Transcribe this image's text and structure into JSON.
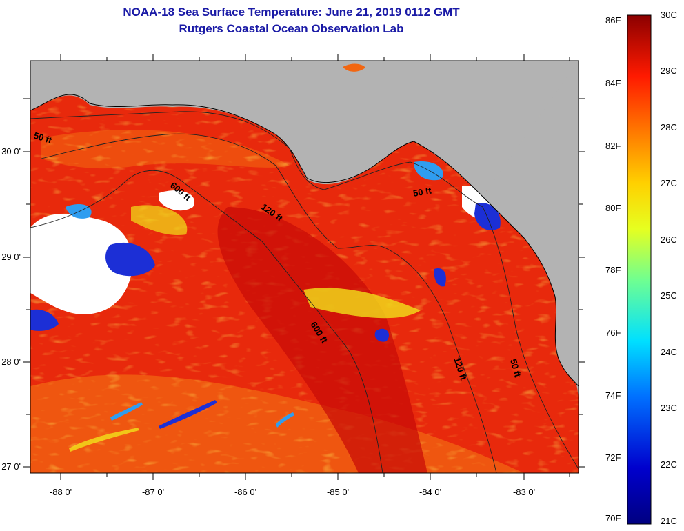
{
  "title": {
    "line1": "NOAA-18 Sea Surface Temperature:  June 21, 2019 0112 GMT",
    "line2": "Rutgers Coastal Ocean Observation Lab"
  },
  "axes": {
    "longitude_labels": [
      "-88 0'",
      "-87 0'",
      "-86 0'",
      "-85 0'",
      "-84 0'",
      "-83 0'"
    ],
    "latitude_labels": [
      "30 0'",
      "29 0'",
      "28 0'",
      "27 0'"
    ]
  },
  "contours": {
    "depth_50_west": "50 ft",
    "depth_600_north": "600 ft",
    "depth_120_north": "120 ft",
    "depth_50_east": "50 ft",
    "depth_600_south": "600 ft",
    "depth_120_south": "120 ft",
    "depth_50_south": "50 ft"
  },
  "colorbar": {
    "fahrenheit": [
      "86F",
      "84F",
      "82F",
      "80F",
      "78F",
      "76F",
      "74F",
      "72F",
      "70F"
    ],
    "celsius": [
      "30C",
      "29C",
      "28C",
      "27C",
      "26C",
      "25C",
      "24C",
      "23C",
      "22C",
      "21C"
    ]
  },
  "colors": {
    "land": "#b3b3b3",
    "warm": "#e8290c",
    "hot": "#d10f08",
    "mid": "#f26611",
    "cool_yellow": "#f1e21a",
    "cold_blue": "#1c2fd6",
    "cloud": "#ffffff",
    "title": "#1a1aa6"
  }
}
